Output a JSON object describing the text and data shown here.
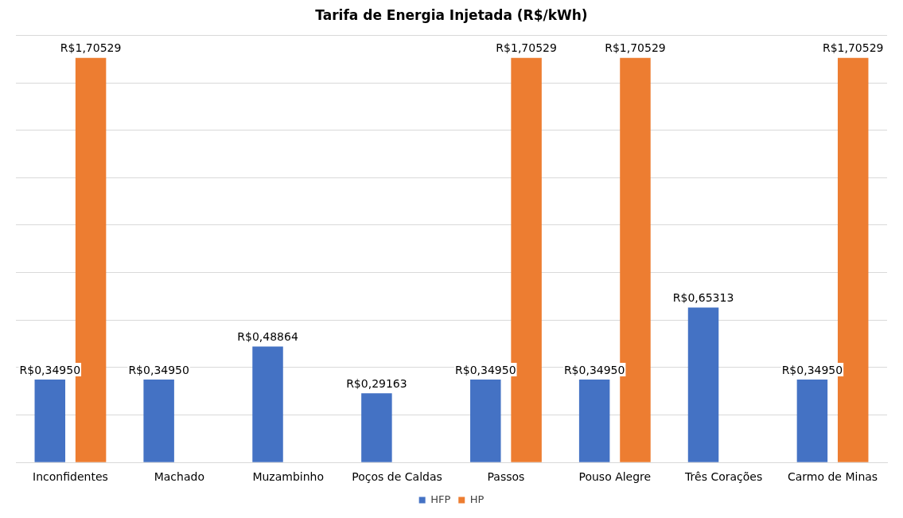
{
  "chart_data": {
    "type": "bar",
    "title": "Tarifa de Energia Injetada (R$/kWh)",
    "categories": [
      "Inconfidentes",
      "Machado",
      "Muzambinho",
      "Poços de Caldas",
      "Passos",
      "Pouso Alegre",
      "Três Corações",
      "Carmo de Minas"
    ],
    "series": [
      {
        "name": "HFP",
        "color": "#4472c4",
        "values": [
          0.3495,
          0.3495,
          0.48864,
          0.29163,
          0.3495,
          0.3495,
          0.65313,
          0.3495
        ],
        "value_labels": [
          "R$0,34950",
          "R$0,34950",
          "R$0,48864",
          "R$0,29163",
          "R$0,34950",
          "R$0,34950",
          "R$0,65313",
          "R$0,34950"
        ]
      },
      {
        "name": "HP",
        "color": "#ed7d31",
        "values": [
          1.70529,
          null,
          null,
          null,
          1.70529,
          1.70529,
          null,
          1.70529
        ],
        "value_labels": [
          "R$1,70529",
          null,
          null,
          null,
          "R$1,70529",
          "R$1,70529",
          null,
          "R$1,70529"
        ]
      }
    ],
    "ylim": [
      0,
      1.8
    ],
    "yticks": [
      {
        "value": 0,
        "label": null
      },
      {
        "value": 0.2,
        "label": null
      },
      {
        "value": 0.4,
        "label": null
      },
      {
        "value": 0.6,
        "label": null
      },
      {
        "value": 0.8,
        "label": null
      },
      {
        "value": 1,
        "label": null
      },
      {
        "value": 1.2,
        "label": null
      },
      {
        "value": 1.4,
        "label": null
      },
      {
        "value": 1.6,
        "label": null
      },
      {
        "value": 1.8,
        "label": null
      }
    ],
    "tick_labels": "x",
    "grid": "y",
    "legend": "bottom"
  }
}
